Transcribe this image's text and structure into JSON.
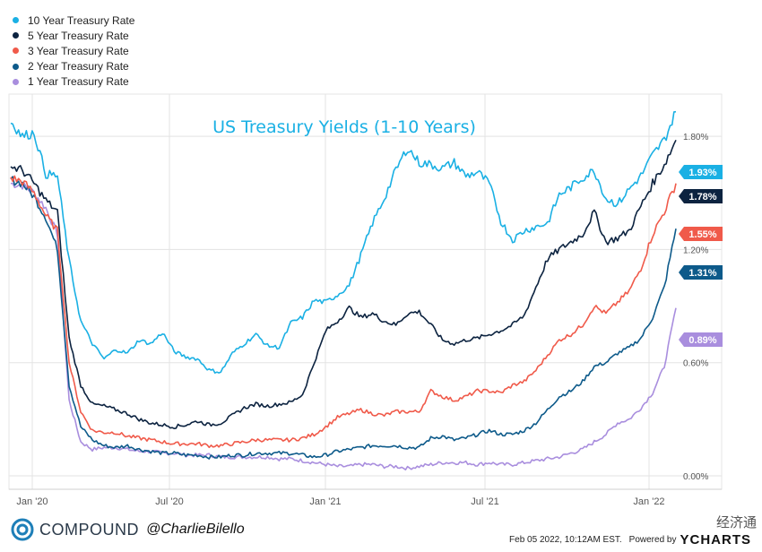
{
  "chart_data": {
    "type": "line",
    "title": "US Treasury Yields (1-10 Years)",
    "xlabel": "",
    "ylabel": "",
    "x_ticks": [
      "Jan '20",
      "Jul '20",
      "Jan '21",
      "Jul '21",
      "Jan '22"
    ],
    "y_ticks": [
      "0.00%",
      "0.60%",
      "1.20%",
      "1.80%"
    ],
    "ylim": [
      0,
      2.0
    ],
    "grid": true,
    "legend_position": "top-left",
    "series": [
      {
        "name": "10 Year Treasury Rate",
        "color": "#1ab0e4",
        "end_label": "1.93%",
        "values": [
          1.88,
          1.8,
          1.82,
          1.6,
          1.59,
          1.14,
          0.82,
          0.7,
          0.62,
          0.67,
          0.65,
          0.72,
          0.7,
          0.76,
          0.66,
          0.63,
          0.62,
          0.56,
          0.55,
          0.65,
          0.7,
          0.75,
          0.69,
          0.68,
          0.81,
          0.84,
          0.93,
          0.92,
          0.96,
          1.01,
          1.17,
          1.34,
          1.47,
          1.62,
          1.74,
          1.66,
          1.65,
          1.63,
          1.66,
          1.59,
          1.61,
          1.55,
          1.35,
          1.25,
          1.3,
          1.32,
          1.34,
          1.49,
          1.53,
          1.58,
          1.62,
          1.47,
          1.44,
          1.52,
          1.59,
          1.7,
          1.78,
          1.93
        ]
      },
      {
        "name": "5 Year Treasury Rate",
        "color": "#0c2340",
        "end_label": "1.78%",
        "values": [
          1.64,
          1.62,
          1.55,
          1.46,
          1.4,
          0.73,
          0.48,
          0.38,
          0.37,
          0.35,
          0.33,
          0.3,
          0.28,
          0.27,
          0.26,
          0.27,
          0.29,
          0.27,
          0.28,
          0.32,
          0.36,
          0.38,
          0.37,
          0.38,
          0.39,
          0.43,
          0.6,
          0.77,
          0.82,
          0.89,
          0.84,
          0.86,
          0.82,
          0.8,
          0.86,
          0.87,
          0.8,
          0.72,
          0.7,
          0.72,
          0.73,
          0.75,
          0.77,
          0.8,
          0.85,
          1.0,
          1.15,
          1.2,
          1.24,
          1.28,
          1.4,
          1.24,
          1.26,
          1.3,
          1.43,
          1.55,
          1.65,
          1.78
        ]
      },
      {
        "name": "3 Year Treasury Rate",
        "color": "#f05a4a",
        "end_label": "1.55%",
        "values": [
          1.58,
          1.56,
          1.5,
          1.38,
          1.3,
          0.6,
          0.34,
          0.24,
          0.23,
          0.23,
          0.21,
          0.2,
          0.19,
          0.18,
          0.17,
          0.17,
          0.17,
          0.16,
          0.16,
          0.17,
          0.18,
          0.19,
          0.19,
          0.19,
          0.19,
          0.2,
          0.22,
          0.26,
          0.31,
          0.33,
          0.35,
          0.33,
          0.32,
          0.34,
          0.34,
          0.34,
          0.45,
          0.42,
          0.4,
          0.42,
          0.45,
          0.45,
          0.44,
          0.48,
          0.5,
          0.56,
          0.64,
          0.72,
          0.75,
          0.8,
          0.9,
          0.86,
          0.92,
          0.98,
          1.1,
          1.28,
          1.4,
          1.55
        ]
      },
      {
        "name": "2 Year Treasury Rate",
        "color": "#0d5a8a",
        "end_label": "1.31%",
        "values": [
          1.57,
          1.55,
          1.48,
          1.37,
          1.2,
          0.48,
          0.26,
          0.19,
          0.16,
          0.15,
          0.16,
          0.14,
          0.13,
          0.12,
          0.12,
          0.11,
          0.11,
          0.1,
          0.1,
          0.11,
          0.11,
          0.12,
          0.12,
          0.12,
          0.12,
          0.11,
          0.1,
          0.11,
          0.13,
          0.14,
          0.15,
          0.16,
          0.16,
          0.16,
          0.15,
          0.15,
          0.2,
          0.21,
          0.19,
          0.2,
          0.22,
          0.24,
          0.22,
          0.22,
          0.24,
          0.28,
          0.35,
          0.42,
          0.45,
          0.5,
          0.58,
          0.6,
          0.65,
          0.68,
          0.73,
          0.84,
          1.0,
          1.31
        ]
      },
      {
        "name": "1 Year Treasury Rate",
        "color": "#a98ede",
        "end_label": "0.89%",
        "values": [
          1.55,
          1.54,
          1.5,
          1.42,
          1.28,
          0.4,
          0.18,
          0.14,
          0.15,
          0.15,
          0.14,
          0.13,
          0.13,
          0.12,
          0.12,
          0.11,
          0.11,
          0.11,
          0.1,
          0.1,
          0.1,
          0.1,
          0.1,
          0.09,
          0.09,
          0.08,
          0.07,
          0.06,
          0.05,
          0.05,
          0.06,
          0.06,
          0.05,
          0.05,
          0.04,
          0.05,
          0.06,
          0.07,
          0.07,
          0.07,
          0.06,
          0.07,
          0.06,
          0.06,
          0.07,
          0.08,
          0.09,
          0.1,
          0.12,
          0.14,
          0.18,
          0.22,
          0.28,
          0.3,
          0.36,
          0.44,
          0.58,
          0.89
        ]
      }
    ]
  },
  "footer": {
    "brand": "COMPOUND",
    "handle": "@CharlieBilello",
    "date": "Feb 05 2022, 10:12AM EST.",
    "powered_by": "Powered by",
    "ycharts": "YCHARTS",
    "watermark": "经济通"
  },
  "colors": {
    "grid": "#e3e3e3",
    "title": "#1ab0e4"
  }
}
